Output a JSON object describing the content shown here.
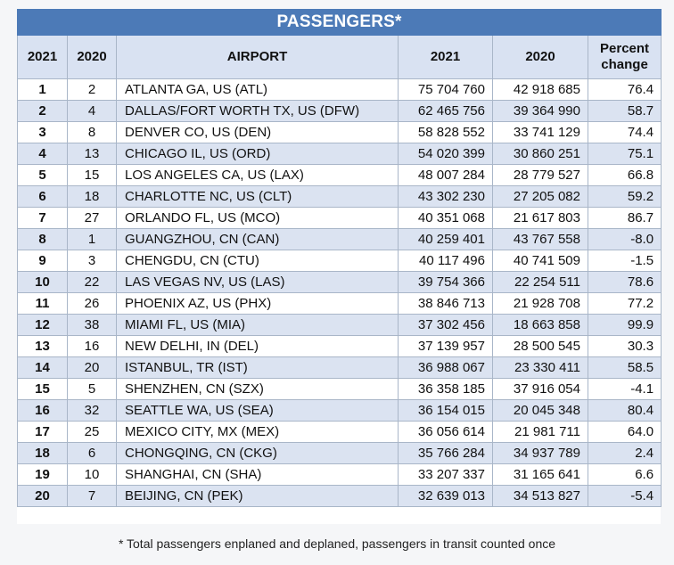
{
  "title": "PASSENGERS*",
  "headers": {
    "rank2021": "2021",
    "rank2020": "2020",
    "airport": "AIRPORT",
    "pax2021": "2021",
    "pax2020": "2020",
    "change_line1": "Percent",
    "change_line2": "change"
  },
  "rows": [
    {
      "rank2021": "1",
      "rank2020": "2",
      "airport": "ATLANTA GA, US (ATL)",
      "pax2021": "75 704 760",
      "pax2020": "42 918 685",
      "change": "76.4"
    },
    {
      "rank2021": "2",
      "rank2020": "4",
      "airport": "DALLAS/FORT WORTH TX, US (DFW)",
      "pax2021": "62 465 756",
      "pax2020": "39 364 990",
      "change": "58.7"
    },
    {
      "rank2021": "3",
      "rank2020": "8",
      "airport": "DENVER CO, US (DEN)",
      "pax2021": "58 828 552",
      "pax2020": "33 741 129",
      "change": "74.4"
    },
    {
      "rank2021": "4",
      "rank2020": "13",
      "airport": "CHICAGO IL, US (ORD)",
      "pax2021": "54 020 399",
      "pax2020": "30 860 251",
      "change": "75.1"
    },
    {
      "rank2021": "5",
      "rank2020": "15",
      "airport": "LOS ANGELES CA, US (LAX)",
      "pax2021": "48 007 284",
      "pax2020": "28 779 527",
      "change": "66.8"
    },
    {
      "rank2021": "6",
      "rank2020": "18",
      "airport": "CHARLOTTE NC, US (CLT)",
      "pax2021": "43 302 230",
      "pax2020": "27 205 082",
      "change": "59.2"
    },
    {
      "rank2021": "7",
      "rank2020": "27",
      "airport": "ORLANDO FL, US (MCO)",
      "pax2021": "40 351 068",
      "pax2020": "21 617 803",
      "change": "86.7"
    },
    {
      "rank2021": "8",
      "rank2020": "1",
      "airport": "GUANGZHOU, CN (CAN)",
      "pax2021": "40 259 401",
      "pax2020": "43 767 558",
      "change": "-8.0"
    },
    {
      "rank2021": "9",
      "rank2020": "3",
      "airport": "CHENGDU, CN (CTU)",
      "pax2021": "40 117 496",
      "pax2020": "40 741 509",
      "change": "-1.5"
    },
    {
      "rank2021": "10",
      "rank2020": "22",
      "airport": "LAS VEGAS NV, US (LAS)",
      "pax2021": "39 754 366",
      "pax2020": "22 254 511",
      "change": "78.6"
    },
    {
      "rank2021": "11",
      "rank2020": "26",
      "airport": "PHOENIX AZ, US (PHX)",
      "pax2021": "38 846 713",
      "pax2020": "21 928 708",
      "change": "77.2"
    },
    {
      "rank2021": "12",
      "rank2020": "38",
      "airport": "MIAMI FL, US (MIA)",
      "pax2021": "37 302 456",
      "pax2020": "18 663 858",
      "change": "99.9"
    },
    {
      "rank2021": "13",
      "rank2020": "16",
      "airport": "NEW DELHI, IN (DEL)",
      "pax2021": "37 139 957",
      "pax2020": "28 500 545",
      "change": "30.3"
    },
    {
      "rank2021": "14",
      "rank2020": "20",
      "airport": "ISTANBUL, TR (IST)",
      "pax2021": "36 988 067",
      "pax2020": "23 330 411",
      "change": "58.5"
    },
    {
      "rank2021": "15",
      "rank2020": "5",
      "airport": "SHENZHEN, CN (SZX)",
      "pax2021": "36 358 185",
      "pax2020": "37 916 054",
      "change": "-4.1"
    },
    {
      "rank2021": "16",
      "rank2020": "32",
      "airport": "SEATTLE WA, US (SEA)",
      "pax2021": "36 154 015",
      "pax2020": "20 045 348",
      "change": "80.4"
    },
    {
      "rank2021": "17",
      "rank2020": "25",
      "airport": "MEXICO CITY, MX (MEX)",
      "pax2021": "36 056 614",
      "pax2020": "21 981 711",
      "change": "64.0"
    },
    {
      "rank2021": "18",
      "rank2020": "6",
      "airport": "CHONGQING, CN (CKG)",
      "pax2021": "35 766 284",
      "pax2020": "34 937 789",
      "change": "2.4"
    },
    {
      "rank2021": "19",
      "rank2020": "10",
      "airport": "SHANGHAI, CN (SHA)",
      "pax2021": "33 207 337",
      "pax2020": "31 165 641",
      "change": "6.6"
    },
    {
      "rank2021": "20",
      "rank2020": "7",
      "airport": "BEIJING, CN (PEK)",
      "pax2021": "32 639 013",
      "pax2020": "34 513 827",
      "change": "-5.4"
    }
  ],
  "footnote": "* Total passengers enplaned and deplaned, passengers in transit counted once",
  "colors": {
    "title_bg": "#4c7ab7",
    "header_bg": "#d9e2f2",
    "stripe_bg": "#dbe3f1",
    "border": "#a9b6c8"
  }
}
